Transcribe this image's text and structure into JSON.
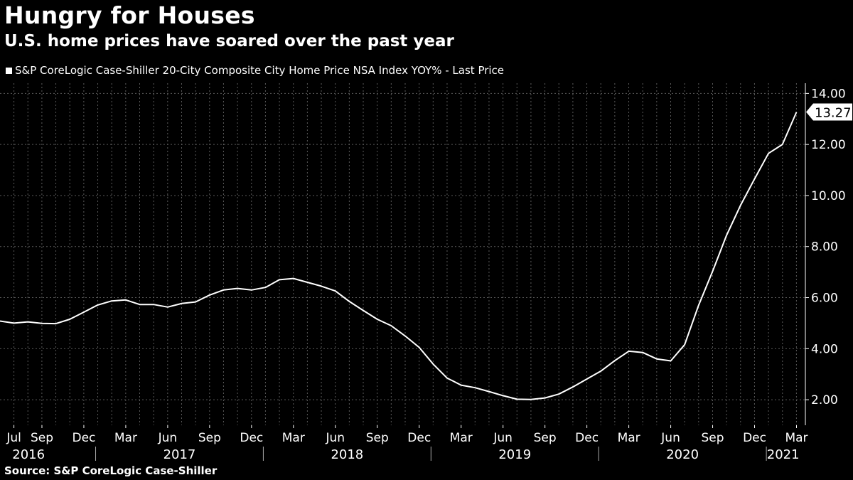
{
  "title": "Hungry for Houses",
  "subtitle": "U.S. home prices have soared over the past year",
  "legend_label": "S&P CoreLogic Case-Shiller 20-City Composite City Home Price NSA Index YOY% - Last Price",
  "source": "Source: S&P CoreLogic Case-Shiller",
  "colors": {
    "background": "#000000",
    "line": "#ffffff",
    "grid": "#5a5a5a"
  },
  "chart_data": {
    "type": "line",
    "title": "Hungry for Houses",
    "subtitle": "U.S. home prices have soared over the past year",
    "xlabel": "",
    "ylabel": "",
    "ylim": [
      1,
      14.4
    ],
    "y_ticks": [
      "2.00",
      "4.00",
      "6.00",
      "8.00",
      "10.00",
      "12.00",
      "14.00"
    ],
    "y_tick_values": [
      2,
      4,
      6,
      8,
      10,
      12,
      14
    ],
    "last_value_label": "13.27",
    "last_value": 13.27,
    "month_ticks": [
      {
        "label": "Jul",
        "t": 2016.5
      },
      {
        "label": "Sep",
        "t": 2016.667
      },
      {
        "label": "Dec",
        "t": 2016.917
      },
      {
        "label": "Mar",
        "t": 2017.167
      },
      {
        "label": "Jun",
        "t": 2017.417
      },
      {
        "label": "Sep",
        "t": 2017.667
      },
      {
        "label": "Dec",
        "t": 2017.917
      },
      {
        "label": "Mar",
        "t": 2018.167
      },
      {
        "label": "Jun",
        "t": 2018.417
      },
      {
        "label": "Sep",
        "t": 2018.667
      },
      {
        "label": "Dec",
        "t": 2018.917
      },
      {
        "label": "Mar",
        "t": 2019.167
      },
      {
        "label": "Jun",
        "t": 2019.417
      },
      {
        "label": "Sep",
        "t": 2019.667
      },
      {
        "label": "Dec",
        "t": 2019.917
      },
      {
        "label": "Mar",
        "t": 2020.167
      },
      {
        "label": "Jun",
        "t": 2020.417
      },
      {
        "label": "Sep",
        "t": 2020.667
      },
      {
        "label": "Dec",
        "t": 2020.917
      },
      {
        "label": "Mar",
        "t": 2021.167
      }
    ],
    "year_labels": [
      {
        "label": "2016",
        "t": 2016.6
      },
      {
        "label": "2017",
        "t": 2017.5
      },
      {
        "label": "2018",
        "t": 2018.5
      },
      {
        "label": "2019",
        "t": 2019.5
      },
      {
        "label": "2020",
        "t": 2020.5
      },
      {
        "label": "2021",
        "t": 2021.1
      }
    ],
    "year_dividers": [
      2017.0,
      2018.0,
      2019.0,
      2020.0,
      2021.0
    ],
    "series": [
      {
        "name": "S&P CoreLogic Case-Shiller 20-City Composite City Home Price NSA Index YOY% - Last Price",
        "x": [
          2016.417,
          2016.5,
          2016.583,
          2016.667,
          2016.75,
          2016.833,
          2016.917,
          2017.0,
          2017.083,
          2017.167,
          2017.25,
          2017.333,
          2017.417,
          2017.5,
          2017.583,
          2017.667,
          2017.75,
          2017.833,
          2017.917,
          2018.0,
          2018.083,
          2018.167,
          2018.25,
          2018.333,
          2018.417,
          2018.5,
          2018.583,
          2018.667,
          2018.75,
          2018.833,
          2018.917,
          2019.0,
          2019.083,
          2019.167,
          2019.25,
          2019.333,
          2019.417,
          2019.5,
          2019.583,
          2019.667,
          2019.75,
          2019.833,
          2019.917,
          2020.0,
          2020.083,
          2020.167,
          2020.25,
          2020.333,
          2020.417,
          2020.5,
          2020.583,
          2020.667,
          2020.75,
          2020.833,
          2020.917,
          2021.0,
          2021.083,
          2021.167
        ],
        "values": [
          5.08,
          5.0,
          5.05,
          4.99,
          4.98,
          5.15,
          5.43,
          5.71,
          5.87,
          5.91,
          5.73,
          5.73,
          5.63,
          5.77,
          5.83,
          6.1,
          6.3,
          6.36,
          6.3,
          6.4,
          6.7,
          6.75,
          6.6,
          6.45,
          6.26,
          5.85,
          5.5,
          5.15,
          4.9,
          4.5,
          4.05,
          3.4,
          2.85,
          2.57,
          2.47,
          2.32,
          2.16,
          2.02,
          2.01,
          2.07,
          2.22,
          2.5,
          2.81,
          3.12,
          3.53,
          3.9,
          3.85,
          3.6,
          3.52,
          4.16,
          5.69,
          7.04,
          8.44,
          9.61,
          10.65,
          11.65,
          12.0,
          13.27
        ]
      }
    ]
  }
}
